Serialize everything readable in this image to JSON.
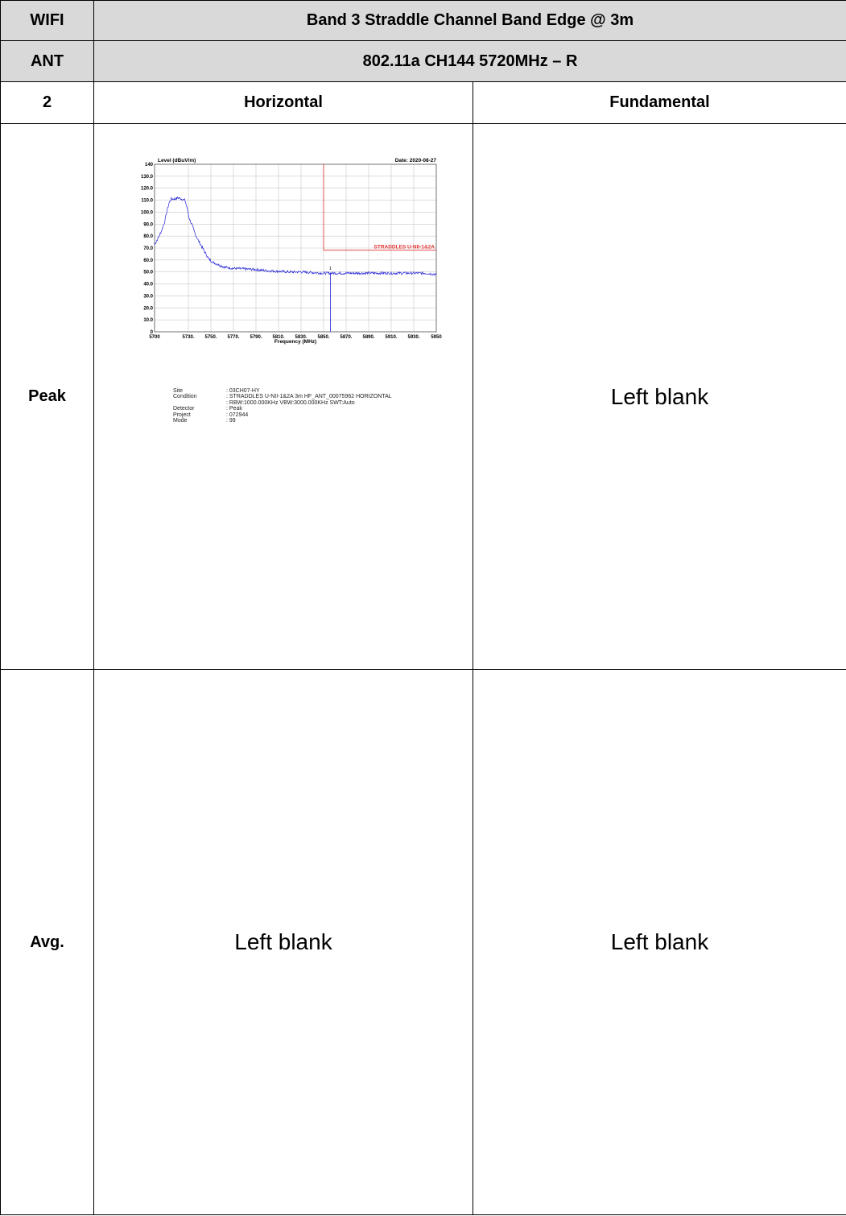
{
  "header": {
    "wifi_label": "WIFI",
    "title": "Band 3 Straddle Channel Band Edge @ 3m",
    "ant_label": "ANT",
    "subtitle": "802.11a CH144 5720MHz – R",
    "ant_number": "2",
    "col_horizontal": "Horizontal",
    "col_fundamental": "Fundamental"
  },
  "rows": {
    "peak_label": "Peak",
    "avg_label": "Avg.",
    "blank_text": "Left blank"
  },
  "plot_info": {
    "site_key": "Site",
    "site_val": ": 03CH07-HY",
    "condition_key": "Condition",
    "condition_val": ": STRADDLES U-NII-1&2A 3m HF_ANT_00075962 HORIZONTAL",
    "condition_val2": ": RBW:1000.000KHz VBW:3000.000KHz SWT:Auto",
    "detector_key": "Detector",
    "detector_val": ": Peak",
    "project_key": "Project",
    "project_val": ": 072944",
    "mode_key": "Mode",
    "mode_val": ": 99"
  },
  "chart_data": {
    "type": "line",
    "ylabel": "Level (dBuV/m)",
    "xlabel": "Frequency (MHz)",
    "date": "Date: 2020-08-27",
    "limit_label": "STRADDLES U-NII-1&2A",
    "marker_label": "1",
    "xlim": [
      5700,
      5950
    ],
    "ylim": [
      0,
      140
    ],
    "x_ticks": [
      5700,
      5730,
      5750,
      5770,
      5790,
      5810,
      5830,
      5850,
      5870,
      5890,
      5910,
      5930,
      5950
    ],
    "x_tick_labels": [
      "5700",
      "5730.",
      "5750.",
      "5770.",
      "5790.",
      "5810.",
      "5830.",
      "5850.",
      "5870.",
      "5890.",
      "5910.",
      "5930.",
      "5950"
    ],
    "y_ticks": [
      0,
      10,
      20,
      30,
      40,
      50,
      60,
      70,
      80,
      90,
      100,
      110,
      120,
      130,
      140
    ],
    "y_tick_labels": [
      "0",
      "10.0",
      "20.0",
      "30.0",
      "40.0",
      "50.0",
      "60.0",
      "70.0",
      "80.0",
      "90.0",
      "100.0",
      "110.0",
      "120.0",
      "130.0",
      "140"
    ],
    "limit_line": {
      "x_start": 5850,
      "x_end": 5950,
      "y": 68.2
    },
    "marker": {
      "x": 5856,
      "y": 48.5
    },
    "series": [
      {
        "color": "#1f1fd6",
        "x": [
          5700,
          5703,
          5706,
          5709,
          5711,
          5713,
          5715,
          5718,
          5721,
          5724,
          5727,
          5729,
          5731,
          5733,
          5736,
          5739,
          5742,
          5745,
          5748,
          5752,
          5757,
          5762,
          5770,
          5780,
          5790,
          5800,
          5810,
          5820,
          5830,
          5840,
          5850,
          5860,
          5870,
          5880,
          5890,
          5900,
          5910,
          5920,
          5930,
          5940,
          5950
        ],
        "y": [
          73,
          78,
          84,
          92,
          101,
          108,
          111,
          111,
          112,
          111,
          110,
          103,
          94,
          90,
          82,
          76,
          71,
          66,
          61,
          58,
          56,
          54,
          53,
          52.5,
          52,
          51,
          50.5,
          50,
          50,
          49.5,
          49,
          49,
          49,
          49,
          49,
          49,
          49,
          49,
          49,
          49,
          48
        ]
      }
    ],
    "colors": {
      "trace": "#1f1fd6",
      "limit": "#e03030",
      "grid": "#c8c8c8"
    }
  }
}
